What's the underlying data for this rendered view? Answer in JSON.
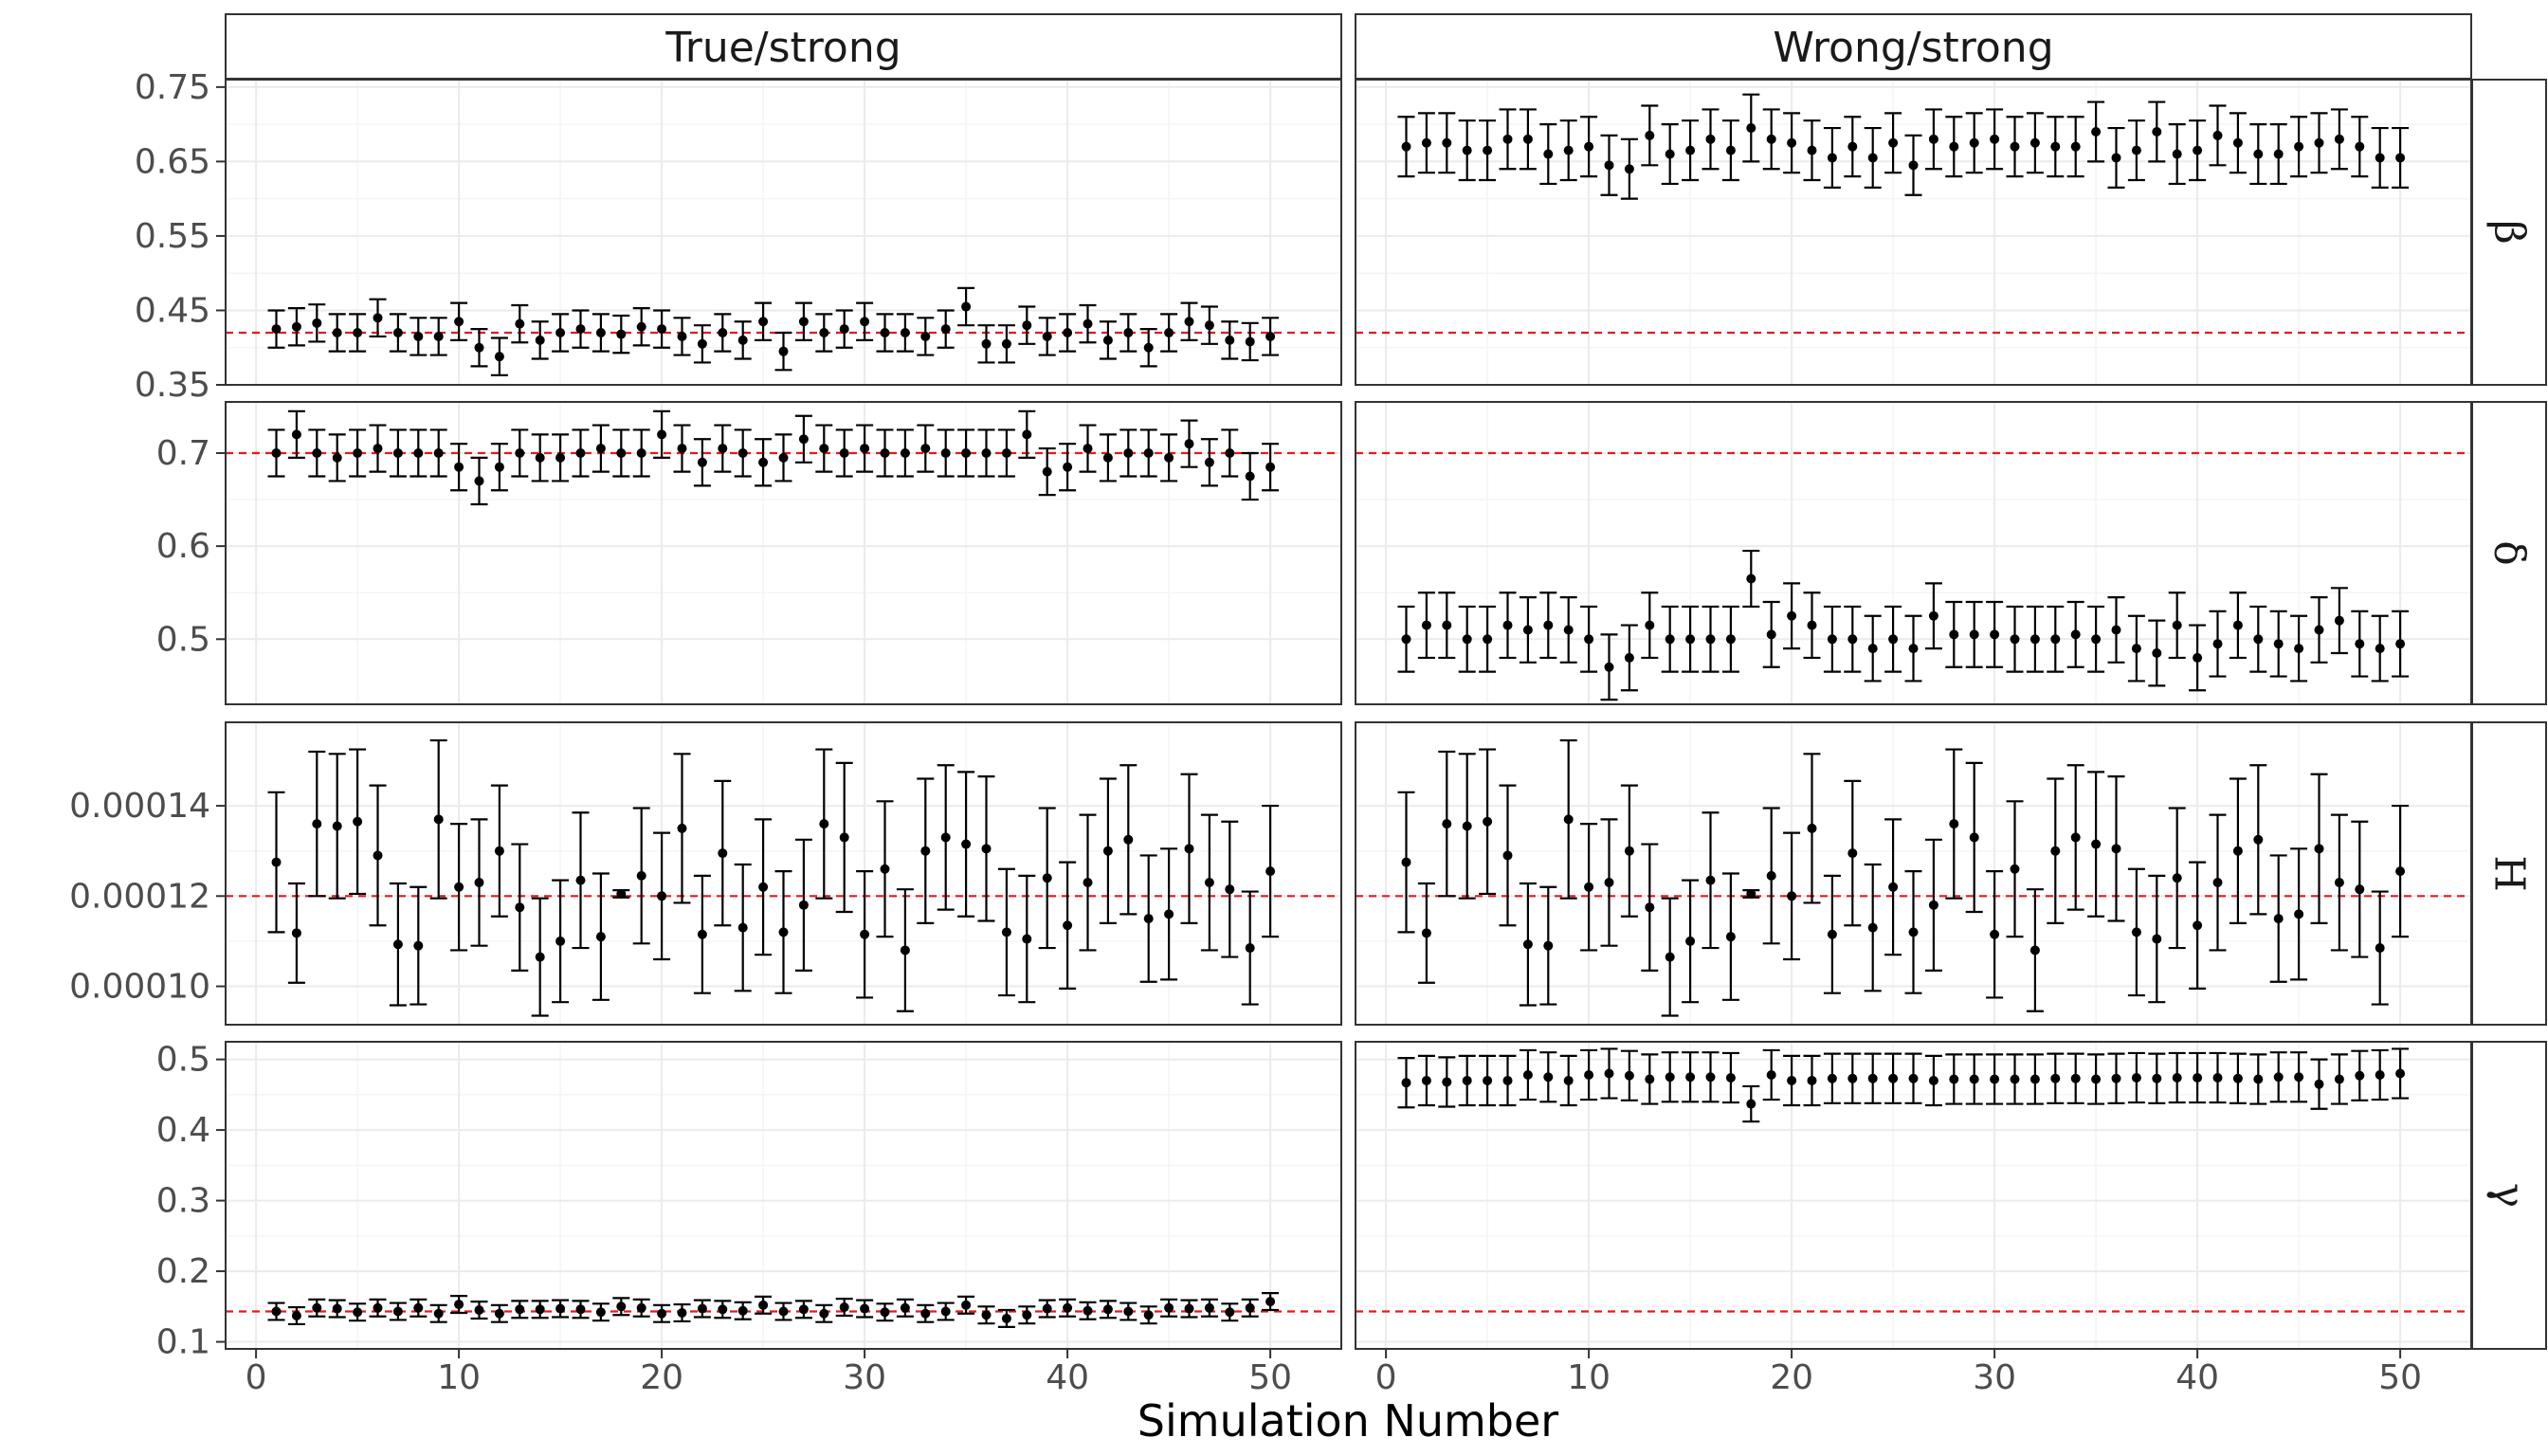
{
  "chart_data": {
    "type": "scatter",
    "xlabel": "Simulation Number",
    "ylabel": "",
    "x_ticks": [
      0,
      10,
      20,
      30,
      40,
      50
    ],
    "xlim": [
      -1.5,
      53.5
    ],
    "grid": true,
    "columns": [
      "True/strong",
      "Wrong/strong"
    ],
    "rows": [
      {
        "label": "β",
        "true_value": 0.42,
        "ylim": [
          0.35,
          0.76
        ],
        "y_ticks": [
          0.35,
          0.45,
          0.55,
          0.65,
          0.75
        ],
        "y_tick_labels": [
          "0.35",
          "0.45",
          "0.55",
          "0.65",
          "0.75"
        ],
        "panels": [
          {
            "estimate": [
              0.425,
              0.428,
              0.433,
              0.42,
              0.42,
              0.44,
              0.42,
              0.415,
              0.415,
              0.435,
              0.4,
              0.388,
              0.432,
              0.41,
              0.42,
              0.425,
              0.42,
              0.418,
              0.428,
              0.425,
              0.415,
              0.405,
              0.42,
              0.41,
              0.435,
              0.395,
              0.435,
              0.42,
              0.425,
              0.435,
              0.42,
              0.42,
              0.415,
              0.425,
              0.455,
              0.405,
              0.405,
              0.43,
              0.415,
              0.42,
              0.432,
              0.41,
              0.42,
              0.4,
              0.42,
              0.435,
              0.43,
              0.41,
              0.408,
              0.415
            ],
            "half_width": [
              0.025,
              0.025,
              0.025,
              0.025,
              0.025,
              0.025,
              0.025,
              0.025,
              0.025,
              0.025,
              0.025,
              0.025,
              0.025,
              0.025,
              0.025,
              0.025,
              0.025,
              0.025,
              0.025,
              0.025,
              0.025,
              0.025,
              0.025,
              0.025,
              0.025,
              0.025,
              0.025,
              0.025,
              0.025,
              0.025,
              0.025,
              0.025,
              0.025,
              0.025,
              0.025,
              0.025,
              0.025,
              0.025,
              0.025,
              0.025,
              0.025,
              0.025,
              0.025,
              0.025,
              0.025,
              0.025,
              0.025,
              0.025,
              0.025,
              0.025
            ]
          },
          {
            "estimate": [
              0.67,
              0.675,
              0.675,
              0.665,
              0.665,
              0.68,
              0.68,
              0.66,
              0.665,
              0.67,
              0.645,
              0.64,
              0.685,
              0.66,
              0.665,
              0.68,
              0.665,
              0.695,
              0.68,
              0.675,
              0.665,
              0.655,
              0.67,
              0.655,
              0.675,
              0.645,
              0.68,
              0.67,
              0.675,
              0.68,
              0.67,
              0.675,
              0.67,
              0.67,
              0.69,
              0.655,
              0.665,
              0.69,
              0.66,
              0.665,
              0.685,
              0.675,
              0.66,
              0.66,
              0.67,
              0.675,
              0.68,
              0.67,
              0.655,
              0.655
            ],
            "half_width": [
              0.04,
              0.04,
              0.04,
              0.04,
              0.04,
              0.04,
              0.04,
              0.04,
              0.04,
              0.04,
              0.04,
              0.04,
              0.04,
              0.04,
              0.04,
              0.04,
              0.04,
              0.045,
              0.04,
              0.04,
              0.04,
              0.04,
              0.04,
              0.04,
              0.04,
              0.04,
              0.04,
              0.04,
              0.04,
              0.04,
              0.04,
              0.04,
              0.04,
              0.04,
              0.04,
              0.04,
              0.04,
              0.04,
              0.04,
              0.04,
              0.04,
              0.04,
              0.04,
              0.04,
              0.04,
              0.04,
              0.04,
              0.04,
              0.04,
              0.04
            ]
          }
        ]
      },
      {
        "label": "δ",
        "true_value": 0.7,
        "ylim": [
          0.43,
          0.755
        ],
        "y_ticks": [
          0.5,
          0.6,
          0.7
        ],
        "y_tick_labels": [
          "0.5",
          "0.6",
          "0.7"
        ],
        "panels": [
          {
            "estimate": [
              0.7,
              0.72,
              0.7,
              0.695,
              0.7,
              0.705,
              0.7,
              0.7,
              0.7,
              0.685,
              0.67,
              0.685,
              0.7,
              0.695,
              0.695,
              0.7,
              0.705,
              0.7,
              0.7,
              0.72,
              0.705,
              0.69,
              0.705,
              0.7,
              0.69,
              0.695,
              0.715,
              0.705,
              0.7,
              0.705,
              0.7,
              0.7,
              0.705,
              0.7,
              0.7,
              0.7,
              0.7,
              0.72,
              0.68,
              0.685,
              0.705,
              0.695,
              0.7,
              0.7,
              0.695,
              0.71,
              0.69,
              0.7,
              0.675,
              0.685
            ],
            "half_width": [
              0.025,
              0.025,
              0.025,
              0.025,
              0.025,
              0.025,
              0.025,
              0.025,
              0.025,
              0.025,
              0.025,
              0.025,
              0.025,
              0.025,
              0.025,
              0.025,
              0.025,
              0.025,
              0.025,
              0.025,
              0.025,
              0.025,
              0.025,
              0.025,
              0.025,
              0.025,
              0.025,
              0.025,
              0.025,
              0.025,
              0.025,
              0.025,
              0.025,
              0.025,
              0.025,
              0.025,
              0.025,
              0.025,
              0.025,
              0.025,
              0.025,
              0.025,
              0.025,
              0.025,
              0.025,
              0.025,
              0.025,
              0.025,
              0.025,
              0.025
            ]
          },
          {
            "estimate": [
              0.5,
              0.515,
              0.515,
              0.5,
              0.5,
              0.515,
              0.51,
              0.515,
              0.51,
              0.5,
              0.47,
              0.48,
              0.515,
              0.5,
              0.5,
              0.5,
              0.5,
              0.565,
              0.505,
              0.525,
              0.515,
              0.5,
              0.5,
              0.49,
              0.5,
              0.49,
              0.525,
              0.505,
              0.505,
              0.505,
              0.5,
              0.5,
              0.5,
              0.505,
              0.5,
              0.51,
              0.49,
              0.485,
              0.515,
              0.48,
              0.495,
              0.515,
              0.5,
              0.495,
              0.49,
              0.51,
              0.52,
              0.495,
              0.49,
              0.495
            ],
            "half_width": [
              0.035,
              0.035,
              0.035,
              0.035,
              0.035,
              0.035,
              0.035,
              0.035,
              0.035,
              0.035,
              0.035,
              0.035,
              0.035,
              0.035,
              0.035,
              0.035,
              0.035,
              0.03,
              0.035,
              0.035,
              0.035,
              0.035,
              0.035,
              0.035,
              0.035,
              0.035,
              0.035,
              0.035,
              0.035,
              0.035,
              0.035,
              0.035,
              0.035,
              0.035,
              0.035,
              0.035,
              0.035,
              0.035,
              0.035,
              0.035,
              0.035,
              0.035,
              0.035,
              0.035,
              0.035,
              0.035,
              0.035,
              0.035,
              0.035,
              0.035
            ]
          }
        ]
      },
      {
        "label": "H",
        "true_value": 0.00012,
        "ylim": [
          9.15e-05,
          0.0001585
        ],
        "y_ticks": [
          0.0001,
          0.00012,
          0.00014
        ],
        "y_tick_labels": [
          "0.00010",
          "0.00012",
          "0.00014"
        ],
        "panels": [
          {
            "estimate": [
              0.0001275,
              0.0001118,
              0.000136,
              0.0001355,
              0.0001365,
              0.000129,
              0.0001093,
              0.000109,
              0.000137,
              0.000122,
              0.000123,
              0.00013,
              0.0001175,
              0.0001065,
              0.00011,
              0.0001235,
              0.000111,
              0.0001205,
              0.0001245,
              0.00012,
              0.000135,
              0.0001115,
              0.0001295,
              0.000113,
              0.000122,
              0.000112,
              0.000118,
              0.000136,
              0.000133,
              0.0001115,
              0.000126,
              0.000108,
              0.00013,
              0.000133,
              0.0001315,
              0.0001305,
              0.000112,
              0.0001105,
              0.000124,
              0.0001135,
              0.000123,
              0.00013,
              0.0001325,
              0.000115,
              0.000116,
              0.0001305,
              0.000123,
              0.0001215,
              0.0001085,
              0.0001255
            ],
            "half_width": [
              1.55e-05,
              1.1e-05,
              1.6e-05,
              1.6e-05,
              1.6e-05,
              1.55e-05,
              1.35e-05,
              1.3e-05,
              1.75e-05,
              1.4e-05,
              1.4e-05,
              1.45e-05,
              1.4e-05,
              1.3e-05,
              1.35e-05,
              1.5e-05,
              1.4e-05,
              8e-07,
              1.5e-05,
              1.4e-05,
              1.65e-05,
              1.3e-05,
              1.6e-05,
              1.4e-05,
              1.5e-05,
              1.35e-05,
              1.45e-05,
              1.65e-05,
              1.65e-05,
              1.4e-05,
              1.5e-05,
              1.35e-05,
              1.6e-05,
              1.6e-05,
              1.6e-05,
              1.6e-05,
              1.4e-05,
              1.4e-05,
              1.55e-05,
              1.4e-05,
              1.5e-05,
              1.6e-05,
              1.65e-05,
              1.4e-05,
              1.45e-05,
              1.65e-05,
              1.5e-05,
              1.5e-05,
              1.25e-05,
              1.45e-05
            ]
          },
          {
            "estimate": [
              0.0001275,
              0.0001118,
              0.000136,
              0.0001355,
              0.0001365,
              0.000129,
              0.0001093,
              0.000109,
              0.000137,
              0.000122,
              0.000123,
              0.00013,
              0.0001175,
              0.0001065,
              0.00011,
              0.0001235,
              0.000111,
              0.0001205,
              0.0001245,
              0.00012,
              0.000135,
              0.0001115,
              0.0001295,
              0.000113,
              0.000122,
              0.000112,
              0.000118,
              0.000136,
              0.000133,
              0.0001115,
              0.000126,
              0.000108,
              0.00013,
              0.000133,
              0.0001315,
              0.0001305,
              0.000112,
              0.0001105,
              0.000124,
              0.0001135,
              0.000123,
              0.00013,
              0.0001325,
              0.000115,
              0.000116,
              0.0001305,
              0.000123,
              0.0001215,
              0.0001085,
              0.0001255
            ],
            "half_width": [
              1.55e-05,
              1.1e-05,
              1.6e-05,
              1.6e-05,
              1.6e-05,
              1.55e-05,
              1.35e-05,
              1.3e-05,
              1.75e-05,
              1.4e-05,
              1.4e-05,
              1.45e-05,
              1.4e-05,
              1.3e-05,
              1.35e-05,
              1.5e-05,
              1.4e-05,
              8e-07,
              1.5e-05,
              1.4e-05,
              1.65e-05,
              1.3e-05,
              1.6e-05,
              1.4e-05,
              1.5e-05,
              1.35e-05,
              1.45e-05,
              1.65e-05,
              1.65e-05,
              1.4e-05,
              1.5e-05,
              1.35e-05,
              1.6e-05,
              1.6e-05,
              1.6e-05,
              1.6e-05,
              1.4e-05,
              1.4e-05,
              1.55e-05,
              1.4e-05,
              1.5e-05,
              1.6e-05,
              1.65e-05,
              1.4e-05,
              1.45e-05,
              1.65e-05,
              1.5e-05,
              1.5e-05,
              1.25e-05,
              1.45e-05
            ]
          }
        ]
      },
      {
        "label": "γ",
        "true_value": 0.143,
        "ylim": [
          0.09,
          0.525
        ],
        "y_ticks": [
          0.1,
          0.2,
          0.3,
          0.4,
          0.5
        ],
        "y_tick_labels": [
          "0.1",
          "0.2",
          "0.3",
          "0.4",
          "0.5"
        ],
        "panels": [
          {
            "estimate": [
              0.143,
              0.137,
              0.148,
              0.147,
              0.142,
              0.148,
              0.143,
              0.148,
              0.14,
              0.153,
              0.145,
              0.14,
              0.146,
              0.146,
              0.147,
              0.146,
              0.142,
              0.15,
              0.148,
              0.14,
              0.141,
              0.147,
              0.146,
              0.144,
              0.152,
              0.143,
              0.146,
              0.14,
              0.149,
              0.147,
              0.142,
              0.148,
              0.14,
              0.143,
              0.152,
              0.138,
              0.133,
              0.138,
              0.147,
              0.148,
              0.144,
              0.146,
              0.143,
              0.138,
              0.148,
              0.147,
              0.148,
              0.142,
              0.148,
              0.157
            ],
            "half_width": [
              0.012,
              0.012,
              0.012,
              0.012,
              0.012,
              0.012,
              0.012,
              0.012,
              0.012,
              0.012,
              0.012,
              0.012,
              0.012,
              0.012,
              0.012,
              0.012,
              0.012,
              0.012,
              0.012,
              0.012,
              0.012,
              0.012,
              0.012,
              0.012,
              0.012,
              0.012,
              0.012,
              0.012,
              0.012,
              0.012,
              0.012,
              0.012,
              0.012,
              0.012,
              0.012,
              0.012,
              0.012,
              0.012,
              0.012,
              0.012,
              0.012,
              0.012,
              0.012,
              0.012,
              0.012,
              0.012,
              0.012,
              0.012,
              0.012,
              0.012
            ]
          },
          {
            "estimate": [
              0.467,
              0.47,
              0.468,
              0.47,
              0.47,
              0.47,
              0.478,
              0.475,
              0.47,
              0.478,
              0.48,
              0.477,
              0.472,
              0.475,
              0.475,
              0.475,
              0.474,
              0.437,
              0.478,
              0.47,
              0.47,
              0.473,
              0.473,
              0.473,
              0.473,
              0.473,
              0.47,
              0.472,
              0.472,
              0.472,
              0.472,
              0.472,
              0.473,
              0.473,
              0.472,
              0.473,
              0.474,
              0.473,
              0.474,
              0.474,
              0.474,
              0.473,
              0.472,
              0.475,
              0.475,
              0.465,
              0.472,
              0.477,
              0.478,
              0.48
            ],
            "half_width": [
              0.035,
              0.035,
              0.035,
              0.035,
              0.035,
              0.035,
              0.035,
              0.035,
              0.035,
              0.035,
              0.035,
              0.035,
              0.035,
              0.035,
              0.035,
              0.035,
              0.035,
              0.025,
              0.035,
              0.035,
              0.035,
              0.035,
              0.035,
              0.035,
              0.035,
              0.035,
              0.035,
              0.035,
              0.035,
              0.035,
              0.035,
              0.035,
              0.035,
              0.035,
              0.035,
              0.035,
              0.035,
              0.035,
              0.035,
              0.035,
              0.035,
              0.035,
              0.035,
              0.035,
              0.035,
              0.035,
              0.035,
              0.035,
              0.035,
              0.035
            ]
          }
        ]
      }
    ],
    "colors": {
      "point": "#000000",
      "reference_line": "#e41a1c",
      "grid_major": "#ebebeb",
      "grid_minor": "#f5f5f5",
      "strip_fill": "#ffffff",
      "panel_border": "#333333"
    }
  }
}
